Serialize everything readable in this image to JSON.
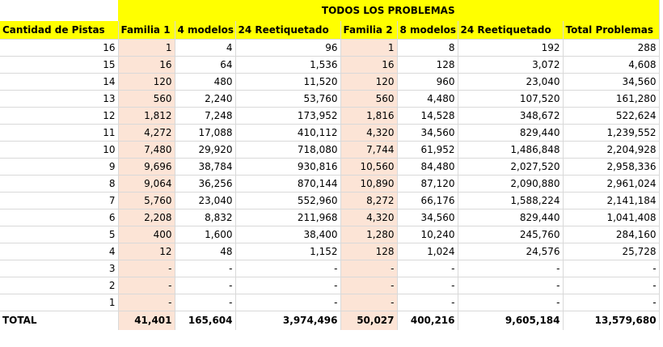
{
  "sheet": {
    "banner_title": "TODOS LOS PROBLEMAS",
    "headers": [
      "Cantidad de Pistas",
      "Familia 1",
      "4 modelos",
      "24 Reetiquetado",
      "Familia 2",
      "8 modelos",
      "24 Reetiquetado",
      "Total Problemas"
    ],
    "rows": [
      [
        "16",
        "1",
        "4",
        "96",
        "1",
        "8",
        "192",
        "288"
      ],
      [
        "15",
        "16",
        "64",
        "1,536",
        "16",
        "128",
        "3,072",
        "4,608"
      ],
      [
        "14",
        "120",
        "480",
        "11,520",
        "120",
        "960",
        "23,040",
        "34,560"
      ],
      [
        "13",
        "560",
        "2,240",
        "53,760",
        "560",
        "4,480",
        "107,520",
        "161,280"
      ],
      [
        "12",
        "1,812",
        "7,248",
        "173,952",
        "1,816",
        "14,528",
        "348,672",
        "522,624"
      ],
      [
        "11",
        "4,272",
        "17,088",
        "410,112",
        "4,320",
        "34,560",
        "829,440",
        "1,239,552"
      ],
      [
        "10",
        "7,480",
        "29,920",
        "718,080",
        "7,744",
        "61,952",
        "1,486,848",
        "2,204,928"
      ],
      [
        "9",
        "9,696",
        "38,784",
        "930,816",
        "10,560",
        "84,480",
        "2,027,520",
        "2,958,336"
      ],
      [
        "8",
        "9,064",
        "36,256",
        "870,144",
        "10,890",
        "87,120",
        "2,090,880",
        "2,961,024"
      ],
      [
        "7",
        "5,760",
        "23,040",
        "552,960",
        "8,272",
        "66,176",
        "1,588,224",
        "2,141,184"
      ],
      [
        "6",
        "2,208",
        "8,832",
        "211,968",
        "4,320",
        "34,560",
        "829,440",
        "1,041,408"
      ],
      [
        "5",
        "400",
        "1,600",
        "38,400",
        "1,280",
        "10,240",
        "245,760",
        "284,160"
      ],
      [
        "4",
        "12",
        "48",
        "1,152",
        "128",
        "1,024",
        "24,576",
        "25,728"
      ],
      [
        "3",
        "-",
        "-",
        "-",
        "-",
        "-",
        "-",
        "-"
      ],
      [
        "2",
        "-",
        "-",
        "-",
        "-",
        "-",
        "-",
        "-"
      ],
      [
        "1",
        "-",
        "-",
        "-",
        "-",
        "-",
        "-",
        "-"
      ]
    ],
    "total": [
      "TOTAL",
      "41,401",
      "165,604",
      "3,974,496",
      "50,027",
      "400,216",
      "9,605,184",
      "13,579,680"
    ],
    "colors": {
      "header_fill": "#ffff00",
      "family_fill": "#fce4d6",
      "grid": "#d9d9d9"
    }
  }
}
